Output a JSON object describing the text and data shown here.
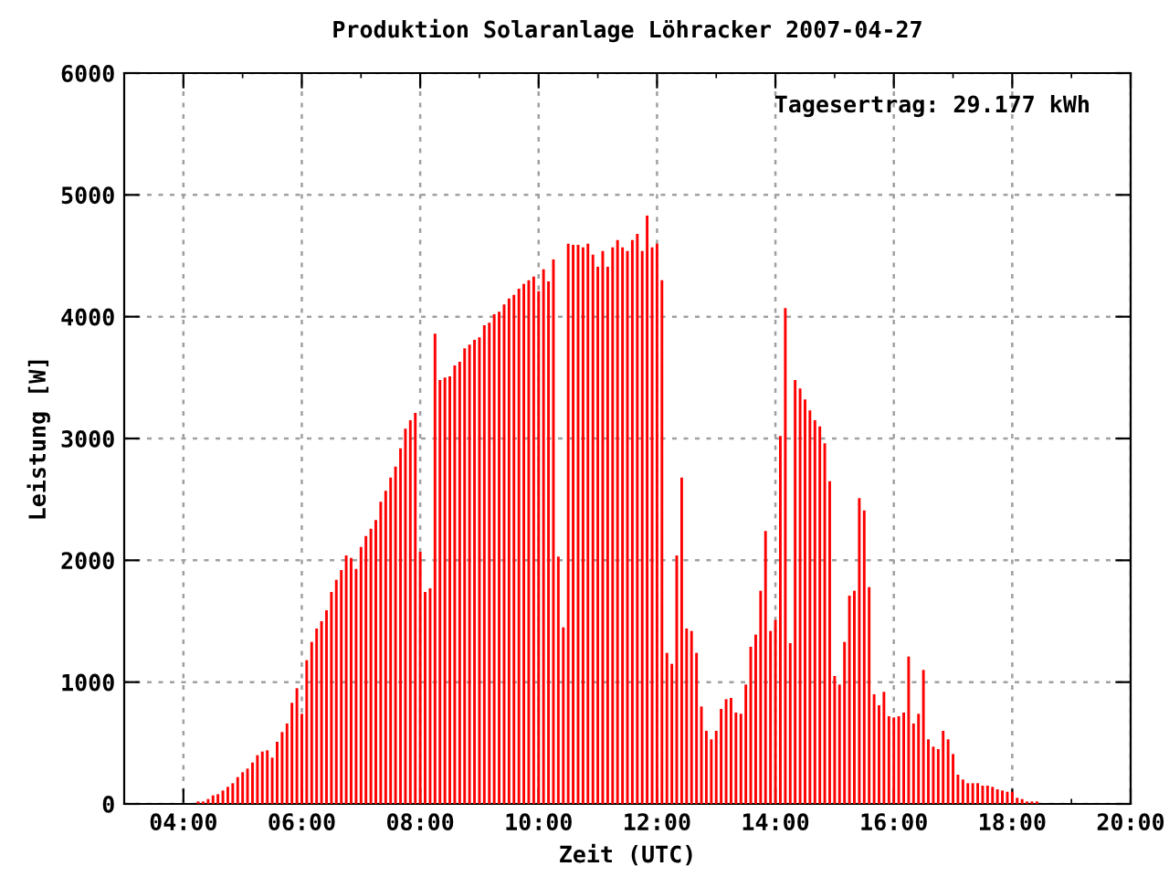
{
  "chart_data": {
    "type": "bar",
    "title": "Produktion Solaranlage Löhracker 2007-04-27",
    "xlabel": "Zeit (UTC)",
    "ylabel": "Leistung [W]",
    "annotations": [
      "Tagesertrag: 29.177 kWh"
    ],
    "xlim": [
      3,
      20
    ],
    "xticks": [
      {
        "value": 4,
        "label": "04:00"
      },
      {
        "value": 6,
        "label": "06:00"
      },
      {
        "value": 8,
        "label": "08:00"
      },
      {
        "value": 10,
        "label": "10:00"
      },
      {
        "value": 12,
        "label": "12:00"
      },
      {
        "value": 14,
        "label": "14:00"
      },
      {
        "value": 16,
        "label": "16:00"
      },
      {
        "value": 18,
        "label": "18:00"
      },
      {
        "value": 20,
        "label": "20:00"
      }
    ],
    "ylim": [
      0,
      6000
    ],
    "yticks": [
      0,
      1000,
      2000,
      3000,
      4000,
      5000,
      6000
    ],
    "grid": true,
    "legend": false,
    "x": [
      4.25,
      4.333,
      4.417,
      4.5,
      4.583,
      4.667,
      4.75,
      4.833,
      4.917,
      5,
      5.083,
      5.167,
      5.25,
      5.333,
      5.417,
      5.5,
      5.583,
      5.667,
      5.75,
      5.833,
      5.917,
      6,
      6.083,
      6.167,
      6.25,
      6.333,
      6.417,
      6.5,
      6.583,
      6.667,
      6.75,
      6.833,
      6.917,
      7,
      7.083,
      7.167,
      7.25,
      7.333,
      7.417,
      7.5,
      7.583,
      7.667,
      7.75,
      7.833,
      7.917,
      8,
      8.083,
      8.167,
      8.25,
      8.333,
      8.417,
      8.5,
      8.583,
      8.667,
      8.75,
      8.833,
      8.917,
      9,
      9.083,
      9.167,
      9.25,
      9.333,
      9.417,
      9.5,
      9.583,
      9.667,
      9.75,
      9.833,
      9.917,
      10,
      10.083,
      10.167,
      10.25,
      10.333,
      10.417,
      10.5,
      10.583,
      10.667,
      10.75,
      10.833,
      10.917,
      11,
      11.083,
      11.167,
      11.25,
      11.333,
      11.417,
      11.5,
      11.583,
      11.667,
      11.75,
      11.833,
      11.917,
      12,
      12.083,
      12.167,
      12.25,
      12.333,
      12.417,
      12.5,
      12.583,
      12.667,
      12.75,
      12.833,
      12.917,
      13,
      13.083,
      13.167,
      13.25,
      13.333,
      13.417,
      13.5,
      13.583,
      13.667,
      13.75,
      13.833,
      13.917,
      14,
      14.083,
      14.167,
      14.25,
      14.333,
      14.417,
      14.5,
      14.583,
      14.667,
      14.75,
      14.833,
      14.917,
      15,
      15.083,
      15.167,
      15.25,
      15.333,
      15.417,
      15.5,
      15.583,
      15.667,
      15.75,
      15.833,
      15.917,
      16,
      16.083,
      16.167,
      16.25,
      16.333,
      16.417,
      16.5,
      16.583,
      16.667,
      16.75,
      16.833,
      16.917,
      17,
      17.083,
      17.167,
      17.25,
      17.333,
      17.417,
      17.5,
      17.583,
      17.667,
      17.75,
      17.833,
      17.917,
      18,
      18.083,
      18.167,
      18.25,
      18.333,
      18.417
    ],
    "series": [
      {
        "color": "#ff0000",
        "values": [
          20,
          20,
          40,
          70,
          80,
          110,
          140,
          170,
          220,
          260,
          290,
          340,
          400,
          430,
          440,
          380,
          510,
          590,
          660,
          830,
          950,
          740,
          1180,
          1330,
          1440,
          1500,
          1590,
          1740,
          1840,
          1920,
          2040,
          2020,
          1930,
          2110,
          2200,
          2260,
          2330,
          2480,
          2570,
          2680,
          2770,
          2920,
          3080,
          3150,
          3210,
          2070,
          1740,
          1770,
          3860,
          3480,
          3500,
          3510,
          3600,
          3630,
          3740,
          3770,
          3810,
          3830,
          3930,
          3950,
          4020,
          4040,
          4100,
          4150,
          4180,
          4230,
          4270,
          4300,
          4330,
          4210,
          4390,
          4290,
          4470,
          2030,
          1450,
          4600,
          4590,
          4590,
          4570,
          4600,
          4510,
          4410,
          4540,
          4410,
          4570,
          4630,
          4570,
          4540,
          4630,
          4680,
          4540,
          4830,
          4570,
          4600,
          4300,
          1240,
          1150,
          2040,
          2680,
          1440,
          1420,
          1240,
          800,
          600,
          530,
          600,
          780,
          860,
          870,
          750,
          740,
          980,
          1290,
          1390,
          1750,
          2240,
          1420,
          1510,
          3020,
          4070,
          1320,
          3480,
          3410,
          3320,
          3230,
          3150,
          3100,
          2960,
          2650,
          1050,
          980,
          1330,
          1710,
          1750,
          2510,
          2410,
          1780,
          900,
          810,
          920,
          720,
          710,
          720,
          750,
          1210,
          660,
          740,
          1100,
          530,
          470,
          450,
          600,
          530,
          410,
          240,
          200,
          170,
          170,
          170,
          150,
          150,
          140,
          120,
          110,
          100,
          100,
          50,
          40,
          20,
          20,
          20
        ]
      }
    ]
  }
}
